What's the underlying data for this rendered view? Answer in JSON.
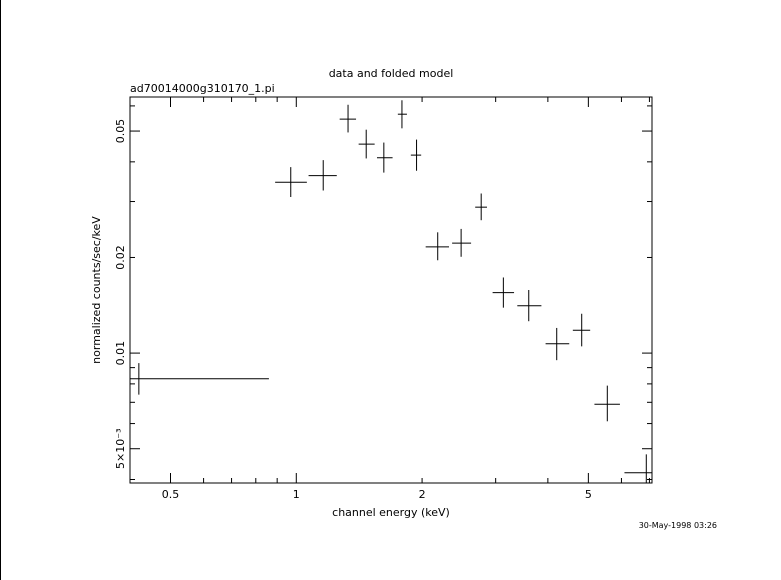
{
  "chart_data": {
    "type": "scatter",
    "title": "data and folded model",
    "subtitle": "ad70014000g310170_1.pi",
    "xlabel": "channel energy (keV)",
    "ylabel": "normalized counts/sec/keV",
    "x_scale": "log",
    "y_scale": "log",
    "xlim": [
      0.4,
      7.1
    ],
    "ylim": [
      0.0039,
      0.064
    ],
    "x_ticks": [
      {
        "value": 0.5,
        "label": "0.5"
      },
      {
        "value": 1,
        "label": "1"
      },
      {
        "value": 2,
        "label": "2"
      },
      {
        "value": 5,
        "label": "5"
      }
    ],
    "y_ticks": [
      {
        "value": 0.005,
        "label": "5×10⁻³"
      },
      {
        "value": 0.01,
        "label": "0.01"
      },
      {
        "value": 0.02,
        "label": "0.02"
      },
      {
        "value": 0.05,
        "label": "0.05"
      }
    ],
    "grid": false,
    "series": [
      {
        "style": "crosses with x and y error bars",
        "points": [
          {
            "x": 0.42,
            "xlo": 0.4,
            "xhi": 0.86,
            "y": 0.0083,
            "ylo": 0.0074,
            "yhi": 0.0093
          },
          {
            "x": 0.97,
            "xlo": 0.89,
            "xhi": 1.06,
            "y": 0.0345,
            "ylo": 0.031,
            "yhi": 0.0385
          },
          {
            "x": 1.16,
            "xlo": 1.07,
            "xhi": 1.25,
            "y": 0.0362,
            "ylo": 0.0325,
            "yhi": 0.0405
          },
          {
            "x": 1.33,
            "xlo": 1.27,
            "xhi": 1.39,
            "y": 0.0545,
            "ylo": 0.0495,
            "yhi": 0.0605
          },
          {
            "x": 1.47,
            "xlo": 1.41,
            "xhi": 1.54,
            "y": 0.0455,
            "ylo": 0.041,
            "yhi": 0.0505
          },
          {
            "x": 1.62,
            "xlo": 1.56,
            "xhi": 1.7,
            "y": 0.0412,
            "ylo": 0.037,
            "yhi": 0.046
          },
          {
            "x": 1.79,
            "xlo": 1.75,
            "xhi": 1.84,
            "y": 0.0565,
            "ylo": 0.051,
            "yhi": 0.0625
          },
          {
            "x": 1.94,
            "xlo": 1.88,
            "xhi": 1.99,
            "y": 0.042,
            "ylo": 0.0375,
            "yhi": 0.047
          },
          {
            "x": 2.18,
            "xlo": 2.04,
            "xhi": 2.32,
            "y": 0.0216,
            "ylo": 0.0196,
            "yhi": 0.024
          },
          {
            "x": 2.48,
            "xlo": 2.36,
            "xhi": 2.62,
            "y": 0.0222,
            "ylo": 0.0201,
            "yhi": 0.0246
          },
          {
            "x": 2.77,
            "xlo": 2.68,
            "xhi": 2.86,
            "y": 0.0288,
            "ylo": 0.0262,
            "yhi": 0.0318
          },
          {
            "x": 3.13,
            "xlo": 2.95,
            "xhi": 3.32,
            "y": 0.0155,
            "ylo": 0.0139,
            "yhi": 0.0173
          },
          {
            "x": 3.6,
            "xlo": 3.38,
            "xhi": 3.86,
            "y": 0.0141,
            "ylo": 0.0126,
            "yhi": 0.0158
          },
          {
            "x": 4.2,
            "xlo": 3.95,
            "xhi": 4.5,
            "y": 0.0107,
            "ylo": 0.0095,
            "yhi": 0.012
          },
          {
            "x": 4.82,
            "xlo": 4.59,
            "xhi": 5.05,
            "y": 0.0118,
            "ylo": 0.0105,
            "yhi": 0.0133
          },
          {
            "x": 5.55,
            "xlo": 5.17,
            "xhi": 5.95,
            "y": 0.0069,
            "ylo": 0.0061,
            "yhi": 0.0079
          },
          {
            "x": 6.88,
            "xlo": 6.1,
            "xhi": 7.6,
            "y": 0.0042,
            "ylo": 0.0035,
            "yhi": 0.0048
          }
        ]
      }
    ]
  },
  "footer": {
    "timestamp": "30-May-1998 03:26"
  }
}
